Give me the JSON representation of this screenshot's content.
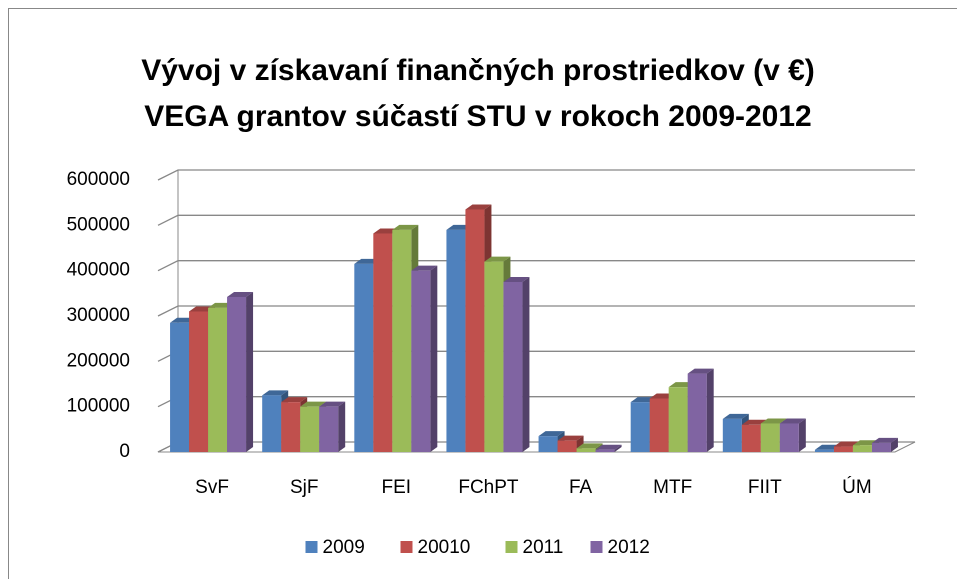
{
  "chart_data": {
    "type": "bar3d",
    "title": [
      "Vývoj v získavaní finančných prostriedkov (v €)",
      "VEGA grantov súčastí STU v rokoch 2009-2012"
    ],
    "categories": [
      "SvF",
      "SjF",
      "FEI",
      "FChPT",
      "FA",
      "MTF",
      "FIIT",
      "ÚM"
    ],
    "series": [
      {
        "name": "2009",
        "color": "#4f81bd",
        "values": [
          285000,
          125000,
          415000,
          490000,
          35000,
          110000,
          73000,
          5000
        ]
      },
      {
        "name": "20010",
        "color": "#c0504d",
        "values": [
          310000,
          110000,
          482000,
          535000,
          25000,
          118000,
          60000,
          12000
        ]
      },
      {
        "name": "2011",
        "color": "#9bbb59",
        "values": [
          318000,
          100000,
          490000,
          420000,
          8000,
          143000,
          63000,
          15000
        ]
      },
      {
        "name": "2012",
        "color": "#8064a2",
        "values": [
          342000,
          100000,
          400000,
          375000,
          5000,
          173000,
          63000,
          20000
        ]
      }
    ],
    "ylim": [
      0,
      600000
    ],
    "yticks": [
      0,
      100000,
      200000,
      300000,
      400000,
      500000,
      600000
    ],
    "grid": true,
    "legend": "bottom"
  }
}
